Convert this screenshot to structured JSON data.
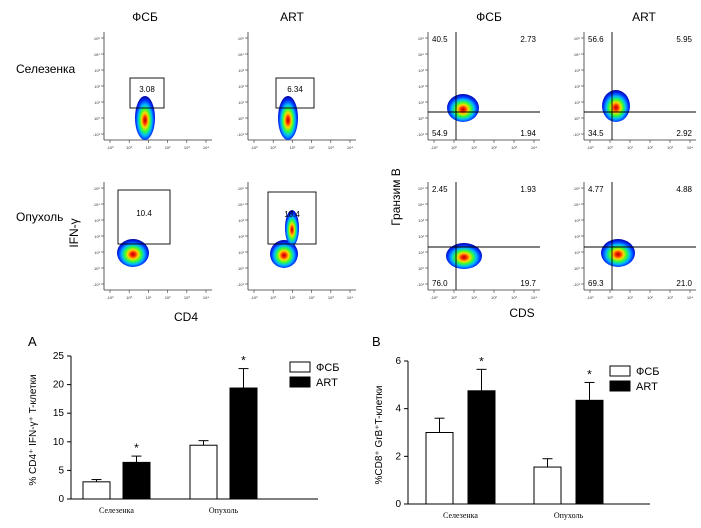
{
  "flow_top": {
    "columns": [
      "ФСБ",
      "ART",
      "ФСБ",
      "ART"
    ],
    "rows": [
      "Селезенка",
      "Опухоль"
    ],
    "cd4_ylabel": "IFN-γ",
    "cd4_xlabel": "CD4",
    "cd8_ylabel": "Гранзим B",
    "cd8_xlabel": "CDS",
    "gates_cd4": [
      "3.08",
      "6.34",
      "10.4",
      "18.4"
    ],
    "quadrants_cd8": [
      [
        "40.5",
        "2.73",
        "54.9",
        "1.94"
      ],
      [
        "56.6",
        "5.95",
        "34.5",
        "2.92"
      ],
      [
        "2.45",
        "1.93",
        "76.0",
        "19.7"
      ],
      [
        "4.77",
        "4.88",
        "69.3",
        "21.0"
      ]
    ],
    "tick_y": [
      "10⁵",
      "10⁴",
      "10³",
      "10²",
      "10¹",
      "10⁰",
      "-10¹"
    ],
    "tick_x": [
      "-10²",
      "10⁰",
      "10¹",
      "10²",
      "10³",
      "10⁴"
    ]
  },
  "chart_data": [
    {
      "type": "bar",
      "panel_label": "A",
      "categories": [
        "Селезенка",
        "Опухоль"
      ],
      "series": [
        {
          "name": "ФСБ",
          "values": [
            3.0,
            9.4
          ],
          "errors": [
            0.4,
            0.8
          ],
          "color": "#ffffff"
        },
        {
          "name": "ART",
          "values": [
            6.4,
            19.4
          ],
          "errors": [
            1.1,
            3.4
          ],
          "color": "#000000"
        }
      ],
      "significance": [
        [
          false,
          false
        ],
        [
          true,
          true
        ]
      ],
      "star": "*",
      "ylabel": "% CD4⁺ IFN-γ⁺ T-клетки",
      "yticks": [
        "0",
        "5",
        "10",
        "15",
        "20",
        "25"
      ],
      "ylim": [
        0,
        25
      ],
      "legend_position": "top-right"
    },
    {
      "type": "bar",
      "panel_label": "B",
      "categories": [
        "Селезенка",
        "Опухоль"
      ],
      "series": [
        {
          "name": "ФСБ",
          "values": [
            3.0,
            1.55
          ],
          "errors": [
            0.6,
            0.35
          ],
          "color": "#ffffff"
        },
        {
          "name": "ART",
          "values": [
            4.75,
            4.35
          ],
          "errors": [
            0.9,
            0.75
          ],
          "color": "#000000"
        }
      ],
      "significance": [
        [
          false,
          false
        ],
        [
          true,
          true
        ]
      ],
      "star": "*",
      "ylabel": "%CD8⁺ GrB⁺T-клетки",
      "yticks": [
        "0",
        "2",
        "4",
        "6"
      ],
      "ylim": [
        0,
        6
      ],
      "legend_position": "top-right"
    }
  ]
}
